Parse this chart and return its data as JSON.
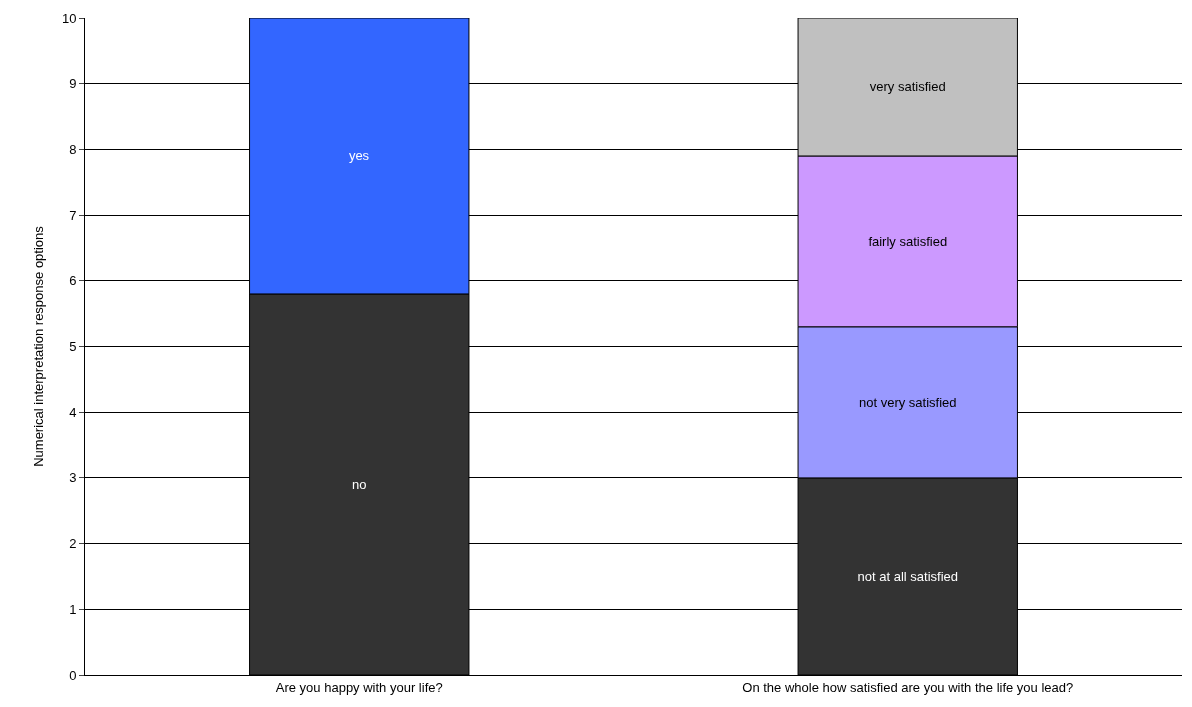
{
  "chart_data": {
    "type": "bar",
    "stacked": true,
    "ylabel": "Numerical interpretation response options",
    "categories": [
      "Are you happy with your life?",
      "On the whole how satisfied are you with the life you lead?"
    ],
    "series": [
      {
        "name": "no",
        "color": "#333333",
        "values": [
          5.8,
          null
        ]
      },
      {
        "name": "yes",
        "color": "#3366ff",
        "values": [
          4.2,
          null
        ]
      },
      {
        "name": "not at all satisfied",
        "color": "#333333",
        "values": [
          null,
          3.0
        ]
      },
      {
        "name": "not very satisfied",
        "color": "#9999ff",
        "values": [
          null,
          2.3
        ]
      },
      {
        "name": "fairly satisfied",
        "color": "#cc99ff",
        "values": [
          null,
          2.6
        ]
      },
      {
        "name": "very satisfied",
        "color": "#c0c0c0",
        "values": [
          null,
          2.1
        ]
      }
    ],
    "ylim": [
      0,
      10
    ],
    "yticks": [
      0,
      1,
      2,
      3,
      4,
      5,
      6,
      7,
      8,
      9,
      10
    ],
    "grid": "y",
    "legend": false
  }
}
